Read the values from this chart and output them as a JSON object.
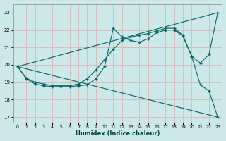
{
  "xlabel": "Humidex (Indice chaleur)",
  "bg_color": "#cce8e8",
  "grid_color": "#b0d0d0",
  "line_color": "#006666",
  "xlim": [
    -0.5,
    23.5
  ],
  "ylim": [
    16.7,
    23.5
  ],
  "yticks": [
    17,
    18,
    19,
    20,
    21,
    22,
    23
  ],
  "xticks": [
    0,
    1,
    2,
    3,
    4,
    5,
    6,
    7,
    8,
    9,
    10,
    11,
    12,
    13,
    14,
    15,
    16,
    17,
    18,
    19,
    20,
    21,
    22,
    23
  ],
  "curve1_x": [
    0,
    1,
    2,
    3,
    4,
    5,
    6,
    7,
    8,
    9,
    10,
    11,
    12,
    13,
    14,
    15,
    16,
    17,
    18,
    19,
    20,
    21,
    22,
    23
  ],
  "curve1_y": [
    19.9,
    19.2,
    18.9,
    18.8,
    18.75,
    18.75,
    18.75,
    18.8,
    18.85,
    19.2,
    19.9,
    22.1,
    21.6,
    21.4,
    21.3,
    21.5,
    21.85,
    22.0,
    22.0,
    21.65,
    20.5,
    18.85,
    18.5,
    17.0
  ],
  "line1_x": [
    0,
    23
  ],
  "line1_y": [
    19.9,
    23.0
  ],
  "curve2_x": [
    0,
    1,
    2,
    3,
    4,
    5,
    6,
    7,
    8,
    9,
    10,
    11,
    12,
    13,
    14,
    15,
    16,
    17,
    18,
    19,
    20,
    21,
    22,
    23
  ],
  "curve2_y": [
    19.9,
    19.25,
    19.0,
    18.9,
    18.8,
    18.8,
    18.8,
    18.9,
    19.2,
    19.7,
    20.3,
    20.9,
    21.4,
    21.6,
    21.7,
    21.8,
    21.95,
    22.1,
    22.1,
    21.7,
    20.5,
    20.1,
    20.6,
    23.0
  ],
  "line2_x": [
    0,
    23
  ],
  "line2_y": [
    19.9,
    17.0
  ]
}
